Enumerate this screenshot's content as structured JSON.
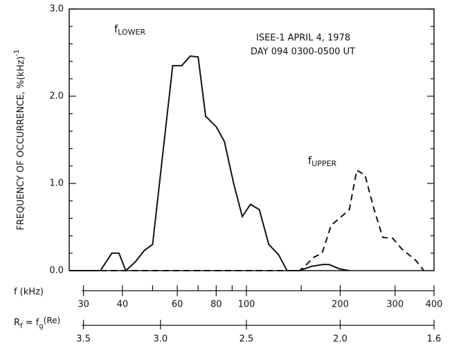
{
  "chart_data": {
    "type": "line",
    "annotations": [
      "ISEE-1  APRIL 4, 1978",
      "DAY 094   0300-0500 UT"
    ],
    "ylabel": {
      "text": "FREQUENCY OF OCCURRENCE, %(kHz)",
      "sup": "-1"
    },
    "xlabel": "f (kHz)",
    "x_scale": "log",
    "xlim": [
      27,
      400
    ],
    "xticks": [
      30,
      40,
      60,
      80,
      100,
      200,
      300,
      400
    ],
    "xminor_ticks": [
      50,
      70,
      90,
      150
    ],
    "ylim": [
      0,
      3
    ],
    "yticks": [
      {
        "value": 0,
        "label": "0.0"
      },
      {
        "value": 1,
        "label": "1.0"
      },
      {
        "value": 2,
        "label": "2.0"
      },
      {
        "value": 3,
        "label": "3.0"
      }
    ],
    "yminor_ticks": [
      0.2,
      0.4,
      0.6,
      0.8,
      1.2,
      1.4,
      1.6,
      1.8,
      2.2,
      2.4,
      2.6,
      2.8
    ],
    "r_axis": {
      "label": [
        {
          "t": "R"
        },
        {
          "t": "f",
          "sub": true
        },
        {
          "t": " = f"
        },
        {
          "t": "g",
          "sub": true
        },
        {
          "t": "(Re)",
          "sup": true
        }
      ],
      "ticks": [
        {
          "label": "3.5",
          "f": 30
        },
        {
          "label": "3.0",
          "f": 53
        },
        {
          "label": "2.5",
          "f": 100
        },
        {
          "label": "2.0",
          "f": 200
        },
        {
          "label": "1.6",
          "f": 400
        }
      ]
    },
    "series": [
      {
        "name": "f",
        "name_sub": "LOWER",
        "color": "#111",
        "dash": false,
        "x": [
          27,
          34,
          37,
          39,
          41,
          44,
          47,
          50,
          58,
          62,
          66,
          70,
          74,
          80,
          85,
          91,
          97,
          103,
          110,
          118,
          127,
          135,
          148,
          162,
          176,
          184,
          199,
          214
        ],
        "values": [
          0,
          0,
          0.2,
          0.2,
          0,
          0.1,
          0.23,
          0.3,
          2.35,
          2.35,
          2.46,
          2.45,
          1.77,
          1.65,
          1.48,
          1.0,
          0.62,
          0.76,
          0.7,
          0.3,
          0.18,
          0,
          0,
          0.05,
          0.07,
          0.07,
          0.02,
          0
        ]
      },
      {
        "name": "f",
        "name_sub": "UPPER",
        "color": "#111",
        "dash": true,
        "x": [
          27,
          148,
          154,
          164,
          175,
          187,
          199,
          214,
          226,
          240,
          257,
          274,
          295,
          315,
          349,
          371
        ],
        "values": [
          0,
          0,
          0.05,
          0.15,
          0.2,
          0.52,
          0.6,
          0.7,
          1.15,
          1.1,
          0.7,
          0.38,
          0.37,
          0.25,
          0.12,
          0
        ]
      }
    ]
  }
}
